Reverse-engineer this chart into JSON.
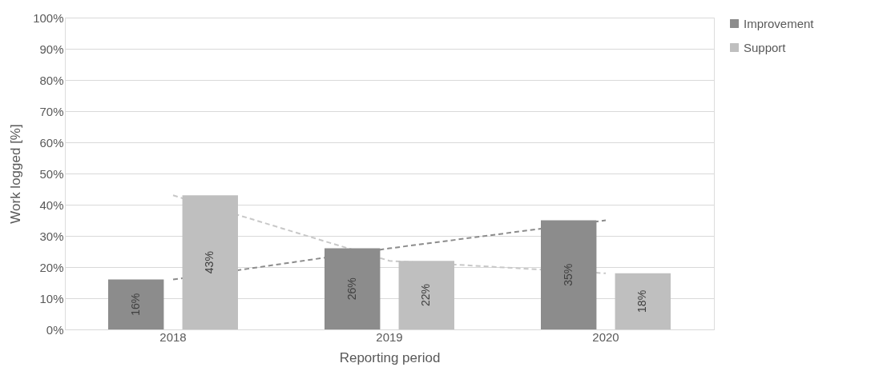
{
  "chart_data": {
    "type": "bar",
    "xlabel": "Reporting period",
    "ylabel": "Work logged [%]",
    "categories": [
      "2018",
      "2019",
      "2020"
    ],
    "series": [
      {
        "name": "Improvement",
        "color": "#8c8c8c",
        "values": [
          16,
          26,
          35
        ],
        "value_labels": [
          "16%",
          "26%",
          "35%"
        ]
      },
      {
        "name": "Support",
        "color": "#bfbfbf",
        "values": [
          43,
          22,
          18
        ],
        "value_labels": [
          "43%",
          "22%",
          "18%"
        ]
      },
      {
        "type": "line",
        "color": "#8c8c8c",
        "line_style": "dashed",
        "values": [
          16,
          26,
          35
        ]
      },
      {
        "type": "line",
        "color": "#c8c8c8",
        "line_style": "dashed",
        "values": [
          43,
          22,
          18
        ]
      }
    ],
    "ylim": [
      0,
      100
    ],
    "yticks": [
      {
        "value": 0,
        "label": "0%"
      },
      {
        "value": 10,
        "label": "10%"
      },
      {
        "value": 20,
        "label": "20%"
      },
      {
        "value": 30,
        "label": "30%"
      },
      {
        "value": 40,
        "label": "40%"
      },
      {
        "value": 50,
        "label": "50%"
      },
      {
        "value": 60,
        "label": "60%"
      },
      {
        "value": 70,
        "label": "70%"
      },
      {
        "value": 80,
        "label": "80%"
      },
      {
        "value": 90,
        "label": "90%"
      },
      {
        "value": 100,
        "label": "100%"
      }
    ],
    "grid": "y",
    "legend": "right"
  }
}
